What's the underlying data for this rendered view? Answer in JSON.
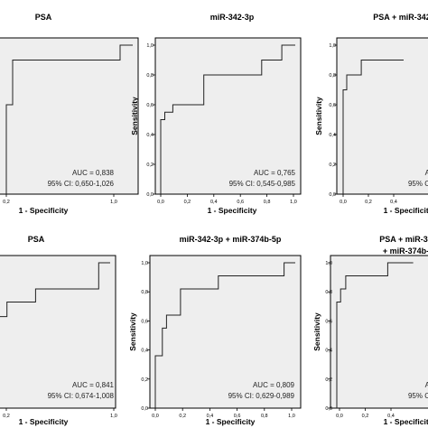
{
  "chart_data": [
    {
      "type": "line",
      "title": "PSA",
      "xlabel": "1 - Specificity",
      "ylabel": "",
      "xlim": [
        0,
        1
      ],
      "ylim": [
        0,
        1
      ],
      "xticks": [
        "0,2",
        "",
        "",
        "",
        "1,0"
      ],
      "yticks": [],
      "auc_label": "AUC = 0,838",
      "ci_label": "95% CI: 0,650-1,026",
      "series": [
        {
          "x": [
            0,
            0,
            0.05,
            0.05,
            0.9,
            0.9,
            1.0
          ],
          "y": [
            0,
            0.6,
            0.6,
            0.9,
            0.9,
            1.0,
            1.0
          ]
        }
      ]
    },
    {
      "type": "line",
      "title": "miR-342-3p",
      "xlabel": "1 - Specificity",
      "ylabel": "Sensitivity",
      "xlim": [
        0,
        1
      ],
      "ylim": [
        0,
        1
      ],
      "xticks": [
        "0,0",
        "0,2",
        "0,4",
        "0,6",
        "0,8",
        "1,0"
      ],
      "yticks": [
        "0,0",
        "0,2",
        "0,4",
        "0,6",
        "0,8",
        "1,0"
      ],
      "auc_label": "AUC = 0,765",
      "ci_label": "95% CI: 0,545-0,985",
      "series": [
        {
          "x": [
            0,
            0,
            0.03,
            0.03,
            0.09,
            0.09,
            0.32,
            0.32,
            0.75,
            0.75,
            0.9,
            0.9,
            1.0
          ],
          "y": [
            0,
            0.5,
            0.5,
            0.55,
            0.55,
            0.6,
            0.6,
            0.8,
            0.8,
            0.9,
            0.9,
            1.0,
            1.0
          ]
        }
      ]
    },
    {
      "type": "line",
      "title": "PSA + miR-342",
      "xlabel": "1 - Specificity",
      "ylabel": "Sensitivity",
      "xlim": [
        0,
        1
      ],
      "ylim": [
        0,
        1
      ],
      "xticks": [
        "0,0",
        "0,2",
        "0,4"
      ],
      "yticks": [
        "0,0",
        "0,2",
        "0,4",
        "0,6",
        "0,8",
        "1,0"
      ],
      "auc_label": "A",
      "ci_label": "95% C",
      "series": [
        {
          "x": [
            0,
            0,
            0.03,
            0.03,
            0.15,
            0.15,
            0.5
          ],
          "y": [
            0,
            0.7,
            0.7,
            0.8,
            0.8,
            0.9,
            0.9
          ]
        }
      ]
    },
    {
      "type": "line",
      "title": "PSA",
      "xlabel": "1 - Specificity",
      "ylabel": "",
      "xlim": [
        0,
        1
      ],
      "ylim": [
        0,
        1
      ],
      "xticks": [
        "0,2",
        "",
        "",
        "",
        "1,0"
      ],
      "yticks": [],
      "auc_label": "AUC = 0,841",
      "ci_label": "95% CI: 0,674-1,008",
      "series": [
        {
          "x": [
            0,
            0,
            0.1,
            0.1,
            0.35,
            0.35,
            0.9,
            0.9,
            1.0
          ],
          "y": [
            0,
            0.63,
            0.63,
            0.73,
            0.73,
            0.82,
            0.82,
            1.0,
            1.0
          ]
        }
      ]
    },
    {
      "type": "line",
      "title": "miR-342-3p + miR-374b-5p",
      "xlabel": "1 - Specificity",
      "ylabel": "Sensitivity",
      "xlim": [
        0,
        1
      ],
      "ylim": [
        0,
        1
      ],
      "xticks": [
        "0,0",
        "0,2",
        "0,4",
        "0,6",
        "0,8",
        "1,0"
      ],
      "yticks": [
        "0,0",
        "0,2",
        "0,4",
        "0,6",
        "0,8",
        "1,0"
      ],
      "auc_label": "AUC = 0,809",
      "ci_label": "95% CI: 0,629-0,989",
      "series": [
        {
          "x": [
            0,
            0,
            0.05,
            0.05,
            0.08,
            0.08,
            0.18,
            0.18,
            0.45,
            0.45,
            0.92,
            0.92,
            1.0
          ],
          "y": [
            0,
            0.36,
            0.36,
            0.55,
            0.55,
            0.64,
            0.64,
            0.82,
            0.82,
            0.91,
            0.91,
            1.0,
            1.0
          ]
        }
      ]
    },
    {
      "type": "line",
      "title": "PSA + miR-342",
      "subtitle": "+ miR-374b-5",
      "xlabel": "1 - Specificity",
      "ylabel": "Sensitivity",
      "xlim": [
        0,
        1
      ],
      "ylim": [
        0,
        1
      ],
      "xticks": [
        "0,0",
        "0,2",
        "0,4"
      ],
      "yticks": [
        "0,0",
        "0,2",
        "0,4",
        "0,6",
        "0,8",
        "1,0"
      ],
      "auc_label": "A",
      "ci_label": "95% C",
      "series": [
        {
          "x": [
            0,
            0,
            0.03,
            0.03,
            0.07,
            0.07,
            0.4,
            0.4,
            0.6
          ],
          "y": [
            0,
            0.73,
            0.73,
            0.82,
            0.82,
            0.91,
            0.91,
            1.0,
            1.0
          ]
        }
      ]
    }
  ]
}
